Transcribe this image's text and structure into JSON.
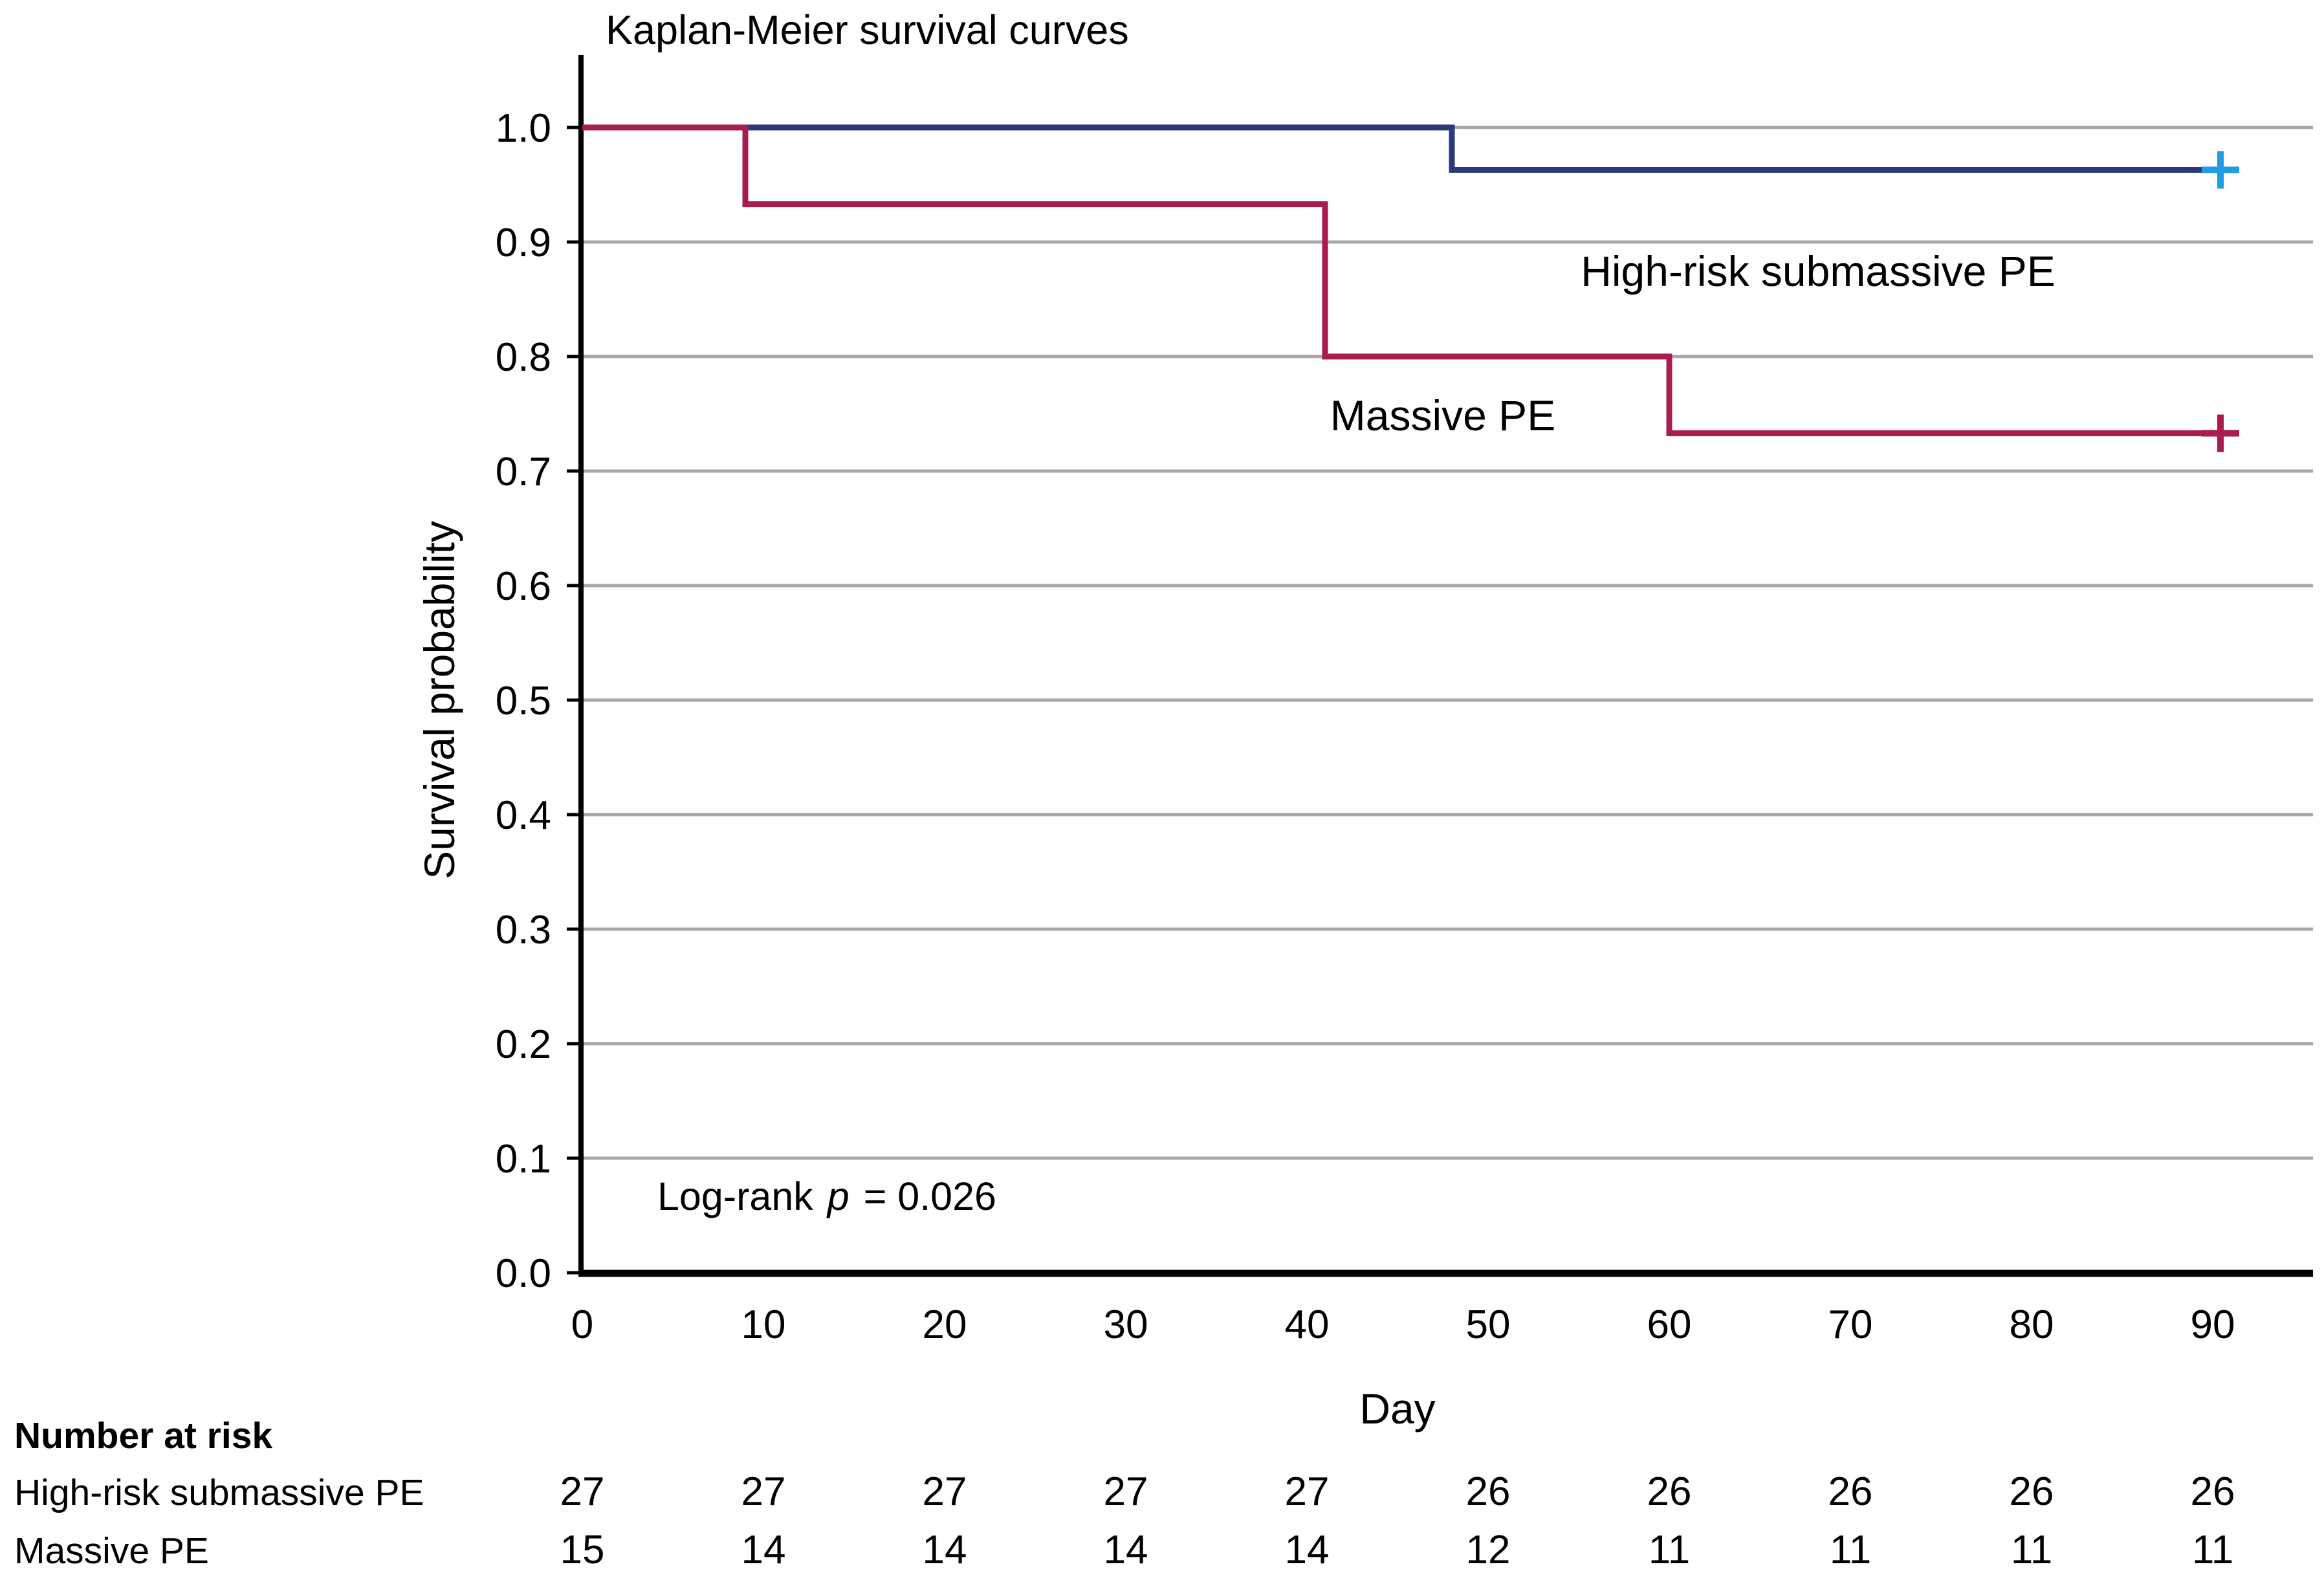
{
  "chart_data": {
    "type": "line",
    "subtype": "kaplan-meier-step",
    "title": "Kaplan-Meier survival curves",
    "xlabel": "Day",
    "ylabel": "Survival probability",
    "xlim": [
      0,
      95
    ],
    "ylim": [
      0.0,
      1.0
    ],
    "x_ticks": [
      0,
      10,
      20,
      30,
      40,
      50,
      60,
      70,
      80,
      90
    ],
    "y_ticks": [
      "0.0",
      "0.1",
      "0.2",
      "0.3",
      "0.4",
      "0.5",
      "0.6",
      "0.7",
      "0.8",
      "0.9",
      "1.0"
    ],
    "grid": "horizontal-only",
    "gridline_color": "#A8A8A8",
    "axis_color": "#000000",
    "annotation": {
      "prefix": "Log-rank",
      "p": "p",
      "suffix": "= 0.026"
    },
    "series": [
      {
        "name": "High-risk submassive PE",
        "color": "#293A7B",
        "censor_color": "#219BE4",
        "points": [
          {
            "day": 0,
            "p": 1.0
          },
          {
            "day": 48,
            "p": 0.963
          }
        ],
        "end_day": 90,
        "end_censored": true
      },
      {
        "name": "Massive PE",
        "color": "#A81D4F",
        "censor_color": "#A81D4F",
        "points": [
          {
            "day": 0,
            "p": 1.0
          },
          {
            "day": 9,
            "p": 0.933
          },
          {
            "day": 41,
            "p": 0.8
          },
          {
            "day": 60,
            "p": 0.733
          }
        ],
        "end_day": 90,
        "end_censored": true
      }
    ],
    "risk_table": {
      "header": "Number at risk",
      "days": [
        0,
        10,
        20,
        30,
        40,
        50,
        60,
        70,
        80,
        90
      ],
      "rows": [
        {
          "label": "High-risk submassive PE",
          "counts": [
            27,
            27,
            27,
            27,
            27,
            26,
            26,
            26,
            26,
            26
          ]
        },
        {
          "label": "Massive PE",
          "counts": [
            15,
            14,
            14,
            14,
            14,
            12,
            11,
            11,
            11,
            11
          ]
        }
      ]
    }
  }
}
